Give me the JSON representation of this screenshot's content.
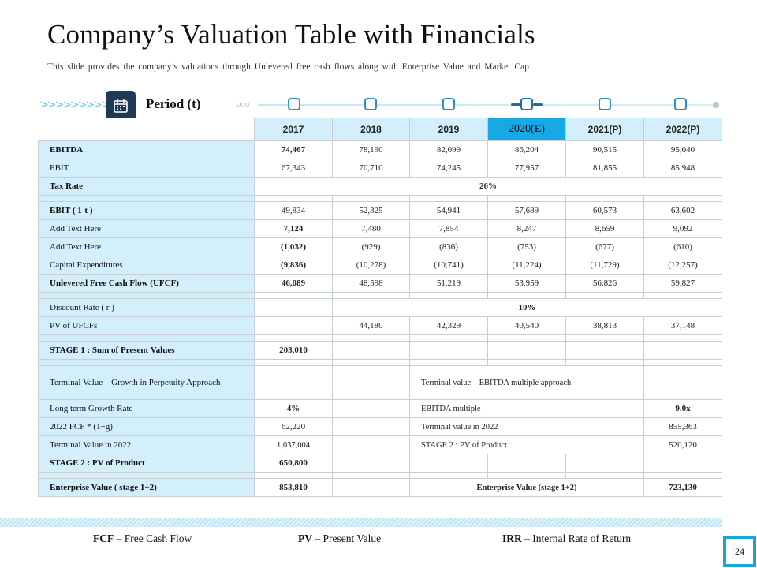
{
  "header": {
    "title": "Company’s Valuation Table with Financials",
    "subtitle": "This slide provides the company’s valuations through Unlevered free cash flows along with Enterprise Value and Market Cap"
  },
  "period": {
    "label": "Period (t)",
    "icon": "calendar-icon",
    "chevrons": ">>>>>>>>>",
    "dots": "ooo"
  },
  "colors": {
    "accent": "#17a8e5",
    "navy": "#1f3a57",
    "label_bg": "#d3effb",
    "border": "#c9ced3"
  },
  "columns": [
    "2017",
    "2018",
    "2019",
    "2020(E)",
    "2021(P)",
    "2022(P)"
  ],
  "rows": {
    "ebitda": {
      "label": "EBITDA",
      "values": [
        "74,467",
        "78,190",
        "82,099",
        "86,204",
        "90,515",
        "95,040"
      ]
    },
    "ebit": {
      "label": "EBIT",
      "values": [
        "67,343",
        "70,710",
        "74,245",
        "77,957",
        "81,855",
        "85,948"
      ]
    },
    "tax_rate": {
      "label": "Tax Rate",
      "value": "26%"
    },
    "ebit_1t": {
      "label": "EBIT ( 1-t )",
      "values": [
        "49,834",
        "52,325",
        "54,941",
        "57,689",
        "60,573",
        "63,602"
      ]
    },
    "add_text_1": {
      "label": "Add Text Here",
      "values": [
        "7,124",
        "7,480",
        "7,854",
        "8,247",
        "8,659",
        "9,092"
      ]
    },
    "add_text_2": {
      "label": "Add Text Here",
      "values": [
        "(1,032)",
        "(929)",
        "(836)",
        "(753)",
        "(677)",
        "(610)"
      ]
    },
    "capex": {
      "label": "Capital Expenditures",
      "values": [
        "(9,836)",
        "(10,278)",
        "(10,741)",
        "(11,224)",
        "(11,729)",
        "(12,257)"
      ]
    },
    "ufcf": {
      "label": "Unlevered Free Cash Flow (UFCF)",
      "values": [
        "46,089",
        "48,598",
        "51,219",
        "53,959",
        "56,826",
        "59,827"
      ]
    },
    "discount_rate": {
      "label": "Discount Rate ( r )",
      "value": "10%"
    },
    "pv_ufcf": {
      "label": "PV of UFCFs",
      "values": [
        "44,180",
        "42,329",
        "40,540",
        "38,813",
        "37,148"
      ]
    },
    "stage1": {
      "label": "STAGE 1 : Sum of Present Values",
      "value": "203,010"
    },
    "terminal_growth": {
      "label": "Terminal Value – Growth in Perpetuity Approach",
      "right_label": "Terminal value – EBITDA multiple approach"
    },
    "ltgr": {
      "label": "Long term Growth Rate",
      "value": "4%",
      "right_label": "EBITDA multiple",
      "right_value": "9.0x"
    },
    "fcf2022": {
      "label": "2022 FCF * (1+g)",
      "value": "62,220",
      "right_label": "Terminal value in 2022",
      "right_value": "855,363"
    },
    "tv2022": {
      "label": "Terminal Value in 2022",
      "value": "1,037,004",
      "right_label": "STAGE 2 : PV of Product",
      "right_value": "520,120"
    },
    "stage2": {
      "label": "STAGE 2 : PV of Product",
      "value": "650,800"
    },
    "ev": {
      "label": "Enterprise Value ( stage 1+2)",
      "value": "853,810",
      "right_label": "Enterprise Value (stage 1+2)",
      "right_value": "723,130"
    }
  },
  "legend": {
    "fcf_abbr": "FCF",
    "fcf_text": "– Free Cash Flow",
    "pv_abbr": "PV",
    "pv_text": "– Present Value",
    "irr_abbr": "IRR",
    "irr_text": "– Internal Rate of Return"
  },
  "page_number": "24"
}
